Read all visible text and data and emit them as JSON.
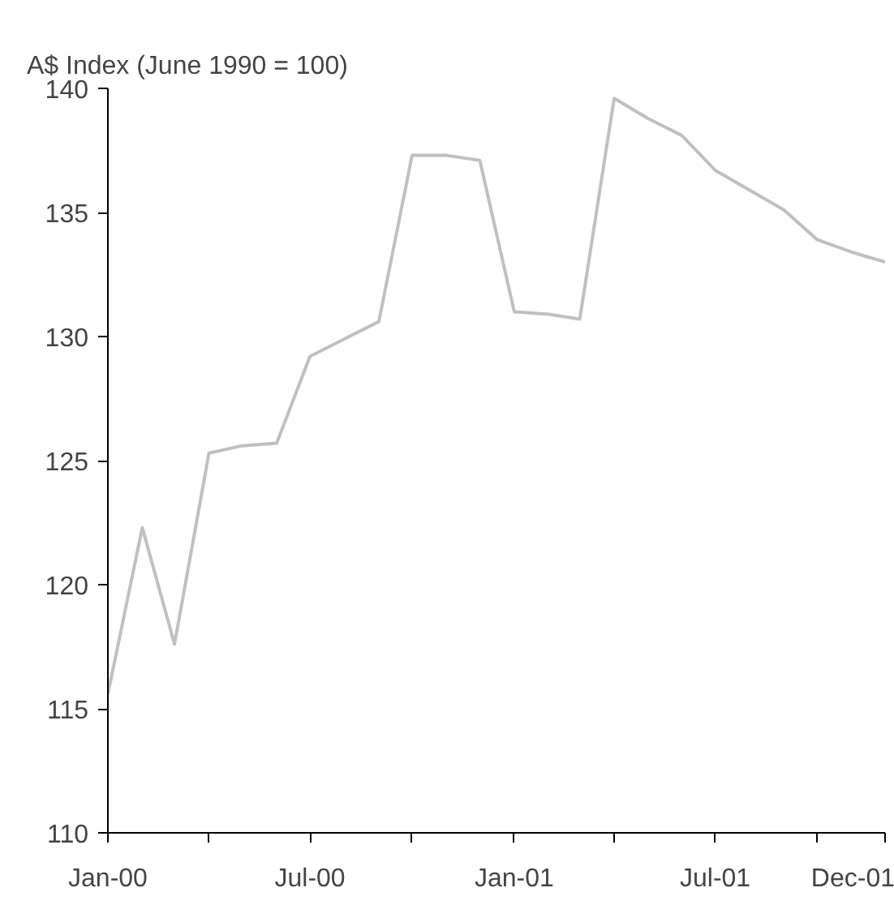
{
  "chart_data": {
    "type": "line",
    "title": "A$ Index (June 1990 = 100)",
    "x": [
      "2000-01",
      "2000-02",
      "2000-03",
      "2000-04",
      "2000-05",
      "2000-06",
      "2000-07",
      "2000-08",
      "2000-09",
      "2000-10",
      "2000-11",
      "2000-12",
      "2001-01",
      "2001-02",
      "2001-03",
      "2001-04",
      "2001-05",
      "2001-06",
      "2001-07",
      "2001-08",
      "2001-09",
      "2001-10",
      "2001-11",
      "2001-12"
    ],
    "series": [
      {
        "color": "#c0c0c0",
        "values": [
          115.6,
          122.3,
          117.6,
          125.3,
          125.6,
          125.7,
          129.2,
          129.9,
          130.6,
          137.3,
          137.3,
          137.1,
          131.0,
          130.9,
          130.7,
          139.6,
          138.8,
          138.1,
          136.7,
          135.9,
          135.1,
          133.9,
          133.4,
          133.0
        ]
      }
    ],
    "xlim": [
      "2000-01",
      "2001-12"
    ],
    "xticks": [
      {
        "value": "2000-01",
        "label": "Jan-00"
      },
      {
        "value": "2000-04",
        "label": null
      },
      {
        "value": "2000-07",
        "label": "Jul-00"
      },
      {
        "value": "2000-10",
        "label": null
      },
      {
        "value": "2001-01",
        "label": "Jan-01"
      },
      {
        "value": "2001-04",
        "label": null
      },
      {
        "value": "2001-07",
        "label": "Jul-01"
      },
      {
        "value": "2001-10",
        "label": null
      },
      {
        "value": "2001-12",
        "label": "Dec-01"
      }
    ],
    "ylim": [
      110,
      140
    ],
    "yticks": [
      110,
      115,
      120,
      125,
      130,
      135,
      140
    ],
    "grid": false,
    "marker": "none",
    "line_style": "solid"
  }
}
